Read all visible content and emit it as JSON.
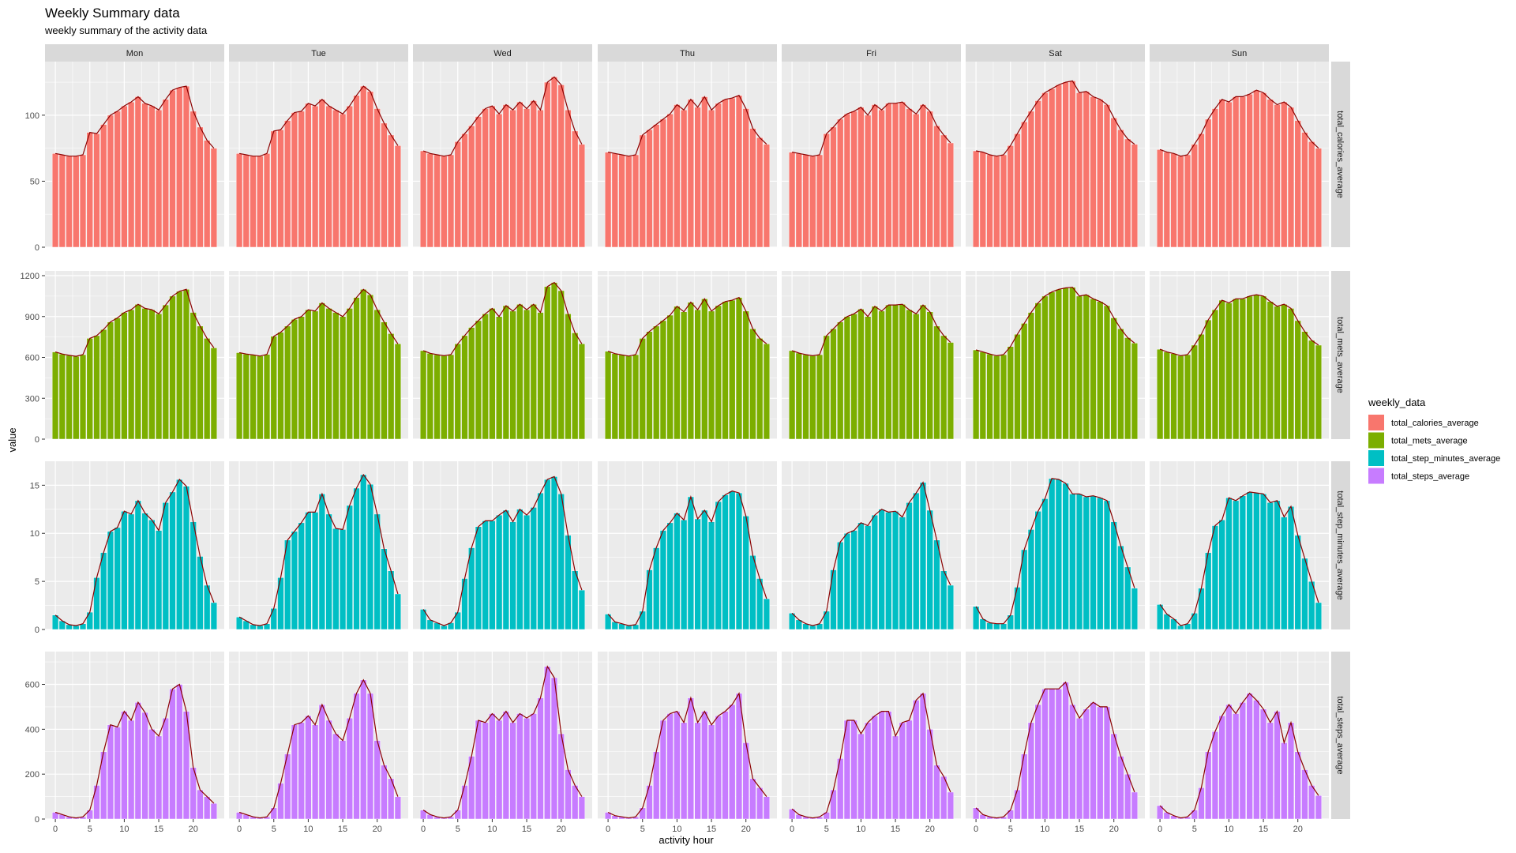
{
  "chart_data": {
    "type": "bar",
    "title": "Weekly Summary data",
    "subtitle": "weekly summary of the activity data",
    "xlabel": "activity hour",
    "ylabel": "value",
    "x": [
      0,
      1,
      2,
      3,
      4,
      5,
      6,
      7,
      8,
      9,
      10,
      11,
      12,
      13,
      14,
      15,
      16,
      17,
      18,
      19,
      20,
      21,
      22,
      23
    ],
    "x_ticks": [
      0,
      5,
      10,
      15,
      20
    ],
    "x_tick_labels": [
      "0",
      "5",
      "10",
      "15",
      "20"
    ],
    "facet_columns": [
      "Mon",
      "Tue",
      "Wed",
      "Thu",
      "Fri",
      "Sat",
      "Sun"
    ],
    "facet_rows": [
      "total_calories_average",
      "total_mets_average",
      "total_step_minutes_average",
      "total_steps_average"
    ],
    "legend": {
      "title": "weekly_data",
      "position": "right",
      "entries": [
        "total_calories_average",
        "total_mets_average",
        "total_step_minutes_average",
        "total_steps_average"
      ]
    },
    "colors": {
      "total_calories_average": "#F8766D",
      "total_mets_average": "#7CAE00",
      "total_step_minutes_average": "#00BFC4",
      "total_steps_average": "#C77CFF",
      "line": "#8B0000",
      "panel_bg": "#EBEBEB",
      "strip_bg": "#D9D9D9"
    },
    "y_axes": {
      "total_calories_average": {
        "ylim": [
          0,
          137
        ],
        "ticks": [
          0,
          50,
          100
        ],
        "tick_labels": [
          "0",
          "50",
          "100"
        ]
      },
      "total_mets_average": {
        "ylim": [
          0,
          1200
        ],
        "ticks": [
          0,
          300,
          600,
          900,
          1200
        ],
        "tick_labels": [
          "0",
          "300",
          "600",
          "900",
          "1200"
        ]
      },
      "total_step_minutes_average": {
        "ylim": [
          0,
          17
        ],
        "ticks": [
          0,
          5,
          10,
          15
        ],
        "tick_labels": [
          "0",
          "5",
          "10",
          "15"
        ]
      },
      "total_steps_average": {
        "ylim": [
          0,
          725
        ],
        "ticks": [
          0,
          200,
          400,
          600
        ],
        "tick_labels": [
          "0",
          "200",
          "400",
          "600"
        ]
      }
    },
    "values": {
      "total_calories_average": {
        "Mon": [
          71,
          70,
          69,
          69,
          70,
          87,
          86,
          93,
          100,
          103,
          107,
          110,
          114,
          109,
          107,
          104,
          112,
          119,
          121,
          122,
          103,
          91,
          81,
          75
        ],
        "Tue": [
          71,
          70,
          69,
          69,
          71,
          88,
          89,
          96,
          102,
          103,
          109,
          107,
          112,
          107,
          104,
          101,
          107,
          115,
          122,
          118,
          105,
          94,
          85,
          77
        ],
        "Wed": [
          73,
          71,
          70,
          69,
          70,
          80,
          86,
          92,
          99,
          105,
          107,
          101,
          108,
          104,
          110,
          105,
          111,
          104,
          125,
          129,
          123,
          104,
          88,
          78
        ],
        "Thu": [
          72,
          71,
          70,
          69,
          70,
          85,
          89,
          93,
          97,
          101,
          108,
          104,
          112,
          106,
          114,
          104,
          109,
          112,
          113,
          115,
          105,
          90,
          83,
          78
        ],
        "Fri": [
          72,
          71,
          70,
          69,
          70,
          86,
          91,
          97,
          101,
          103,
          106,
          100,
          108,
          104,
          109,
          109,
          110,
          105,
          101,
          108,
          103,
          92,
          85,
          79
        ],
        "Sat": [
          73,
          72,
          70,
          69,
          70,
          77,
          86,
          95,
          103,
          111,
          117,
          120,
          123,
          125,
          126,
          117,
          118,
          114,
          112,
          108,
          98,
          89,
          82,
          78
        ],
        "Sun": [
          74,
          72,
          71,
          69,
          70,
          78,
          86,
          97,
          105,
          112,
          110,
          114,
          114,
          116,
          119,
          117,
          112,
          108,
          110,
          106,
          96,
          87,
          80,
          75
        ]
      },
      "total_mets_average": {
        "Mon": [
          640,
          625,
          615,
          608,
          620,
          740,
          760,
          805,
          860,
          890,
          930,
          950,
          990,
          960,
          950,
          920,
          985,
          1050,
          1085,
          1100,
          930,
          830,
          740,
          670
        ],
        "Tue": [
          635,
          625,
          618,
          610,
          622,
          755,
          785,
          830,
          880,
          900,
          950,
          940,
          1000,
          960,
          930,
          900,
          960,
          1040,
          1100,
          1060,
          950,
          860,
          775,
          700
        ],
        "Wed": [
          650,
          630,
          620,
          612,
          620,
          700,
          760,
          820,
          870,
          920,
          960,
          900,
          980,
          940,
          990,
          950,
          990,
          930,
          1120,
          1150,
          1090,
          920,
          780,
          700
        ],
        "Thu": [
          645,
          628,
          618,
          610,
          620,
          740,
          790,
          830,
          870,
          910,
          975,
          935,
          1005,
          950,
          1030,
          940,
          980,
          1010,
          1020,
          1040,
          940,
          810,
          740,
          700
        ],
        "Fri": [
          650,
          632,
          620,
          612,
          620,
          760,
          810,
          860,
          900,
          920,
          955,
          900,
          975,
          940,
          985,
          985,
          990,
          950,
          920,
          985,
          935,
          830,
          760,
          710
        ],
        "Sat": [
          655,
          640,
          625,
          612,
          620,
          680,
          770,
          850,
          930,
          1000,
          1050,
          1080,
          1100,
          1110,
          1115,
          1050,
          1060,
          1030,
          1010,
          980,
          890,
          810,
          745,
          705
        ],
        "Sun": [
          660,
          640,
          628,
          612,
          620,
          690,
          770,
          875,
          950,
          1020,
          1000,
          1030,
          1030,
          1050,
          1060,
          1050,
          1010,
          975,
          990,
          960,
          870,
          790,
          725,
          690
        ]
      },
      "total_step_minutes_average": {
        "Mon": [
          1.5,
          0.9,
          0.5,
          0.4,
          0.6,
          1.8,
          5.4,
          8.0,
          10.2,
          10.6,
          12.3,
          12.0,
          13.4,
          12.1,
          11.4,
          10.3,
          13.2,
          14.3,
          15.6,
          14.9,
          11.2,
          7.6,
          4.6,
          2.8
        ],
        "Tue": [
          1.3,
          0.9,
          0.5,
          0.4,
          0.6,
          2.2,
          5.4,
          9.3,
          10.2,
          11.1,
          12.2,
          12.2,
          14.1,
          12.0,
          10.5,
          10.4,
          12.9,
          14.7,
          16.1,
          15.1,
          12.0,
          8.4,
          6.1,
          3.7
        ],
        "Wed": [
          2.1,
          1.0,
          0.7,
          0.4,
          0.7,
          1.8,
          5.3,
          8.5,
          10.7,
          11.3,
          11.3,
          11.9,
          12.4,
          11.2,
          12.5,
          11.9,
          12.7,
          14.2,
          15.6,
          15.9,
          14.1,
          9.8,
          6.1,
          4.1
        ],
        "Thu": [
          1.6,
          0.8,
          0.6,
          0.4,
          0.5,
          1.9,
          6.2,
          8.5,
          10.3,
          11.1,
          12.1,
          11.4,
          13.8,
          11.5,
          12.4,
          11.2,
          13.3,
          14.0,
          14.4,
          14.2,
          11.8,
          7.7,
          5.3,
          3.2
        ],
        "Fri": [
          1.7,
          1.0,
          0.6,
          0.4,
          0.6,
          1.9,
          6.2,
          9.1,
          10.0,
          10.3,
          11.1,
          10.8,
          11.9,
          12.5,
          12.2,
          12.3,
          11.7,
          13.2,
          14.2,
          15.3,
          12.4,
          9.3,
          6.1,
          4.6
        ],
        "Sat": [
          2.4,
          1.1,
          0.7,
          0.6,
          0.6,
          1.5,
          4.4,
          8.3,
          10.4,
          12.3,
          13.6,
          15.7,
          15.6,
          15.2,
          14.1,
          14.1,
          13.8,
          13.9,
          13.7,
          13.4,
          11.2,
          8.7,
          6.5,
          4.3
        ],
        "Sun": [
          2.6,
          1.6,
          1.1,
          0.4,
          0.6,
          1.7,
          4.3,
          8.0,
          10.8,
          11.4,
          13.7,
          13.4,
          13.9,
          14.3,
          14.2,
          14.1,
          13.2,
          13.4,
          11.7,
          12.8,
          9.8,
          7.4,
          5.0,
          2.8
        ]
      },
      "total_steps_average": {
        "Mon": [
          30,
          20,
          10,
          5,
          10,
          40,
          150,
          300,
          420,
          410,
          480,
          440,
          520,
          475,
          400,
          370,
          450,
          580,
          600,
          480,
          230,
          130,
          100,
          70
        ],
        "Tue": [
          30,
          20,
          10,
          5,
          10,
          50,
          160,
          290,
          420,
          430,
          460,
          420,
          510,
          440,
          380,
          350,
          450,
          560,
          620,
          560,
          350,
          240,
          180,
          100
        ],
        "Wed": [
          40,
          20,
          10,
          5,
          10,
          40,
          150,
          280,
          440,
          430,
          470,
          440,
          480,
          430,
          470,
          450,
          470,
          540,
          680,
          630,
          380,
          220,
          150,
          100
        ],
        "Thu": [
          30,
          15,
          10,
          5,
          10,
          50,
          150,
          300,
          440,
          470,
          480,
          430,
          540,
          430,
          480,
          420,
          460,
          480,
          510,
          560,
          340,
          180,
          140,
          100
        ],
        "Fri": [
          45,
          20,
          10,
          5,
          10,
          30,
          130,
          270,
          440,
          440,
          380,
          430,
          460,
          480,
          480,
          370,
          430,
          440,
          530,
          560,
          400,
          240,
          190,
          120
        ],
        "Sat": [
          50,
          20,
          10,
          5,
          10,
          40,
          130,
          290,
          430,
          510,
          580,
          580,
          580,
          610,
          510,
          450,
          490,
          520,
          500,
          500,
          380,
          280,
          200,
          120
        ],
        "Sun": [
          60,
          30,
          15,
          5,
          10,
          40,
          140,
          300,
          390,
          460,
          510,
          470,
          520,
          560,
          530,
          490,
          430,
          480,
          340,
          430,
          300,
          220,
          150,
          105
        ]
      }
    }
  }
}
